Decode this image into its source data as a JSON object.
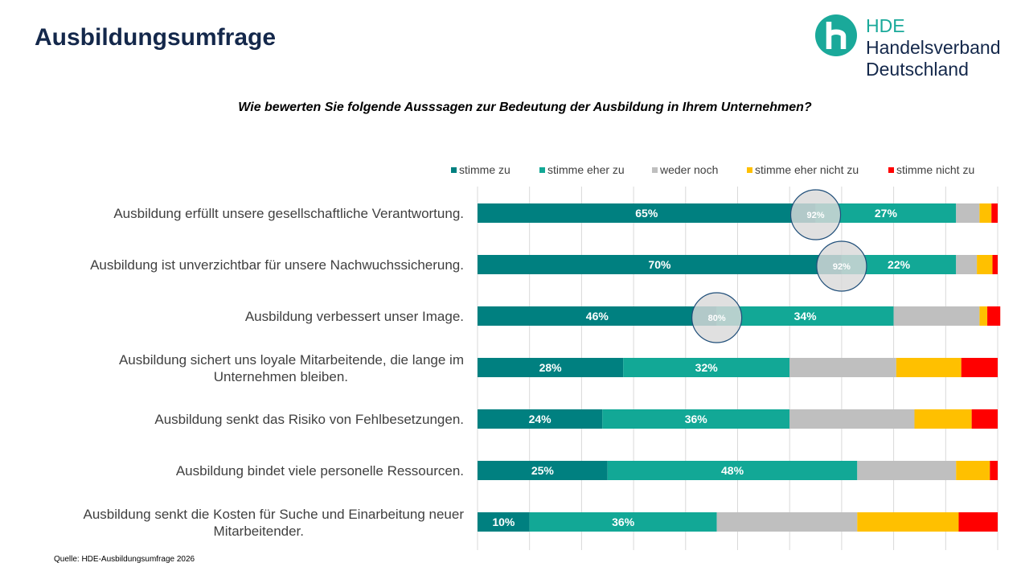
{
  "header": {
    "title": "Ausbildungsumfrage",
    "logo": {
      "line1": "HDE",
      "line2": "Handelsverband",
      "line3": "Deutschland"
    }
  },
  "question": "Wie bewerten Sie folgende Ausssagen zur Bedeutung der Ausbildung in Ihrem Unternehmen?",
  "source": "Quelle: HDE-Ausbildungsumfrage 2026",
  "colors": {
    "title": "#14284b",
    "logo_teal": "#1aa99a",
    "stimme_zu": "#008080",
    "stimme_eher_zu": "#12a896",
    "weder_noch": "#bfbfbf",
    "stimme_eher_nicht_zu": "#ffc000",
    "stimme_nicht_zu": "#ff0000"
  },
  "chart_data": {
    "type": "bar",
    "orientation": "horizontal",
    "stacked": true,
    "xlim": [
      0,
      100
    ],
    "grid": true,
    "legend_position": "top-right",
    "categories": [
      "Ausbildung erfüllt unsere gesellschaftliche Verantwortung.",
      "Ausbildung ist unverzichtbar für unsere Nachwuchssicherung.",
      "Ausbildung verbessert unser Image.",
      "Ausbildung sichert uns loyale Mitarbeitende, die lange im Unternehmen bleiben.",
      "Ausbildung senkt das Risiko von Fehlbesetzungen.",
      "Ausbildung bindet viele personelle Ressourcen.",
      "Ausbildung senkt die Kosten für Suche und Einarbeitung neuer Mitarbeitender."
    ],
    "series": [
      {
        "name": "stimme zu",
        "color": "#008080",
        "values": [
          65,
          70,
          46,
          28,
          24,
          25,
          10
        ],
        "labeled": true
      },
      {
        "name": "stimme eher zu",
        "color": "#12a896",
        "values": [
          27,
          22,
          34,
          32,
          36,
          48,
          36
        ],
        "labeled": true
      },
      {
        "name": "weder noch",
        "color": "#bfbfbf",
        "values": [
          4.5,
          4,
          16.5,
          20.5,
          24,
          19,
          27
        ],
        "labeled": false
      },
      {
        "name": "stimme eher nicht zu",
        "color": "#ffc000",
        "values": [
          2.3,
          3,
          1.5,
          12.5,
          11,
          6.5,
          19.5
        ],
        "labeled": false
      },
      {
        "name": "stimme nicht zu",
        "color": "#ff0000",
        "values": [
          1.2,
          1,
          2.5,
          7,
          5,
          1.5,
          7.5
        ],
        "labeled": false
      }
    ],
    "totals": [
      {
        "row": 0,
        "label": "92%"
      },
      {
        "row": 1,
        "label": "92%"
      },
      {
        "row": 2,
        "label": "80%"
      }
    ]
  }
}
